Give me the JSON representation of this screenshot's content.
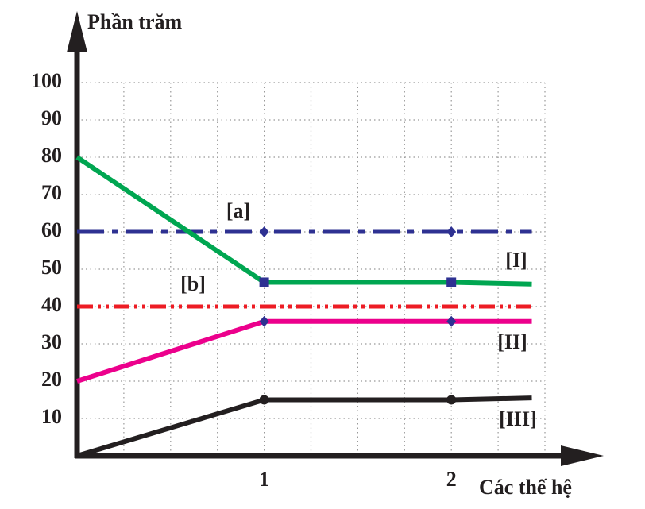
{
  "chart_data": {
    "type": "line",
    "y_label": "Phần trăm",
    "x_label": "Các thế hệ",
    "x": [
      0,
      1,
      2,
      2.43
    ],
    "series": [
      {
        "name": "[a]",
        "color": "#2e3192",
        "dash": "dash-dot",
        "marker": "diamond",
        "values": [
          60,
          60,
          60,
          60
        ]
      },
      {
        "name": "[I]",
        "color": "#00a651",
        "dash": "solid",
        "marker": "square",
        "values": [
          80,
          46.5,
          46.5,
          46
        ]
      },
      {
        "name": "[b]",
        "color": "#ed1c24",
        "dash": "dash-dot-dot",
        "marker": "none",
        "values": [
          40,
          40,
          40,
          40
        ]
      },
      {
        "name": "[II]",
        "color": "#ec008c",
        "dash": "solid",
        "marker": "diamond",
        "values": [
          20,
          36,
          36,
          36
        ]
      },
      {
        "name": "[III]",
        "color": "#231f20",
        "dash": "solid",
        "marker": "circle",
        "values": [
          0,
          15,
          15,
          15.5
        ]
      }
    ],
    "xlim": [
      0,
      2.5
    ],
    "ylim": [
      0,
      100
    ],
    "xticks": [
      1,
      2
    ],
    "yticks": [
      10,
      20,
      30,
      40,
      50,
      60,
      70,
      80,
      90,
      100
    ],
    "xgrid": [
      0.25,
      0.5,
      0.75,
      1,
      1.25,
      1.5,
      1.75,
      2,
      2.25,
      2.5
    ],
    "grid": true
  }
}
